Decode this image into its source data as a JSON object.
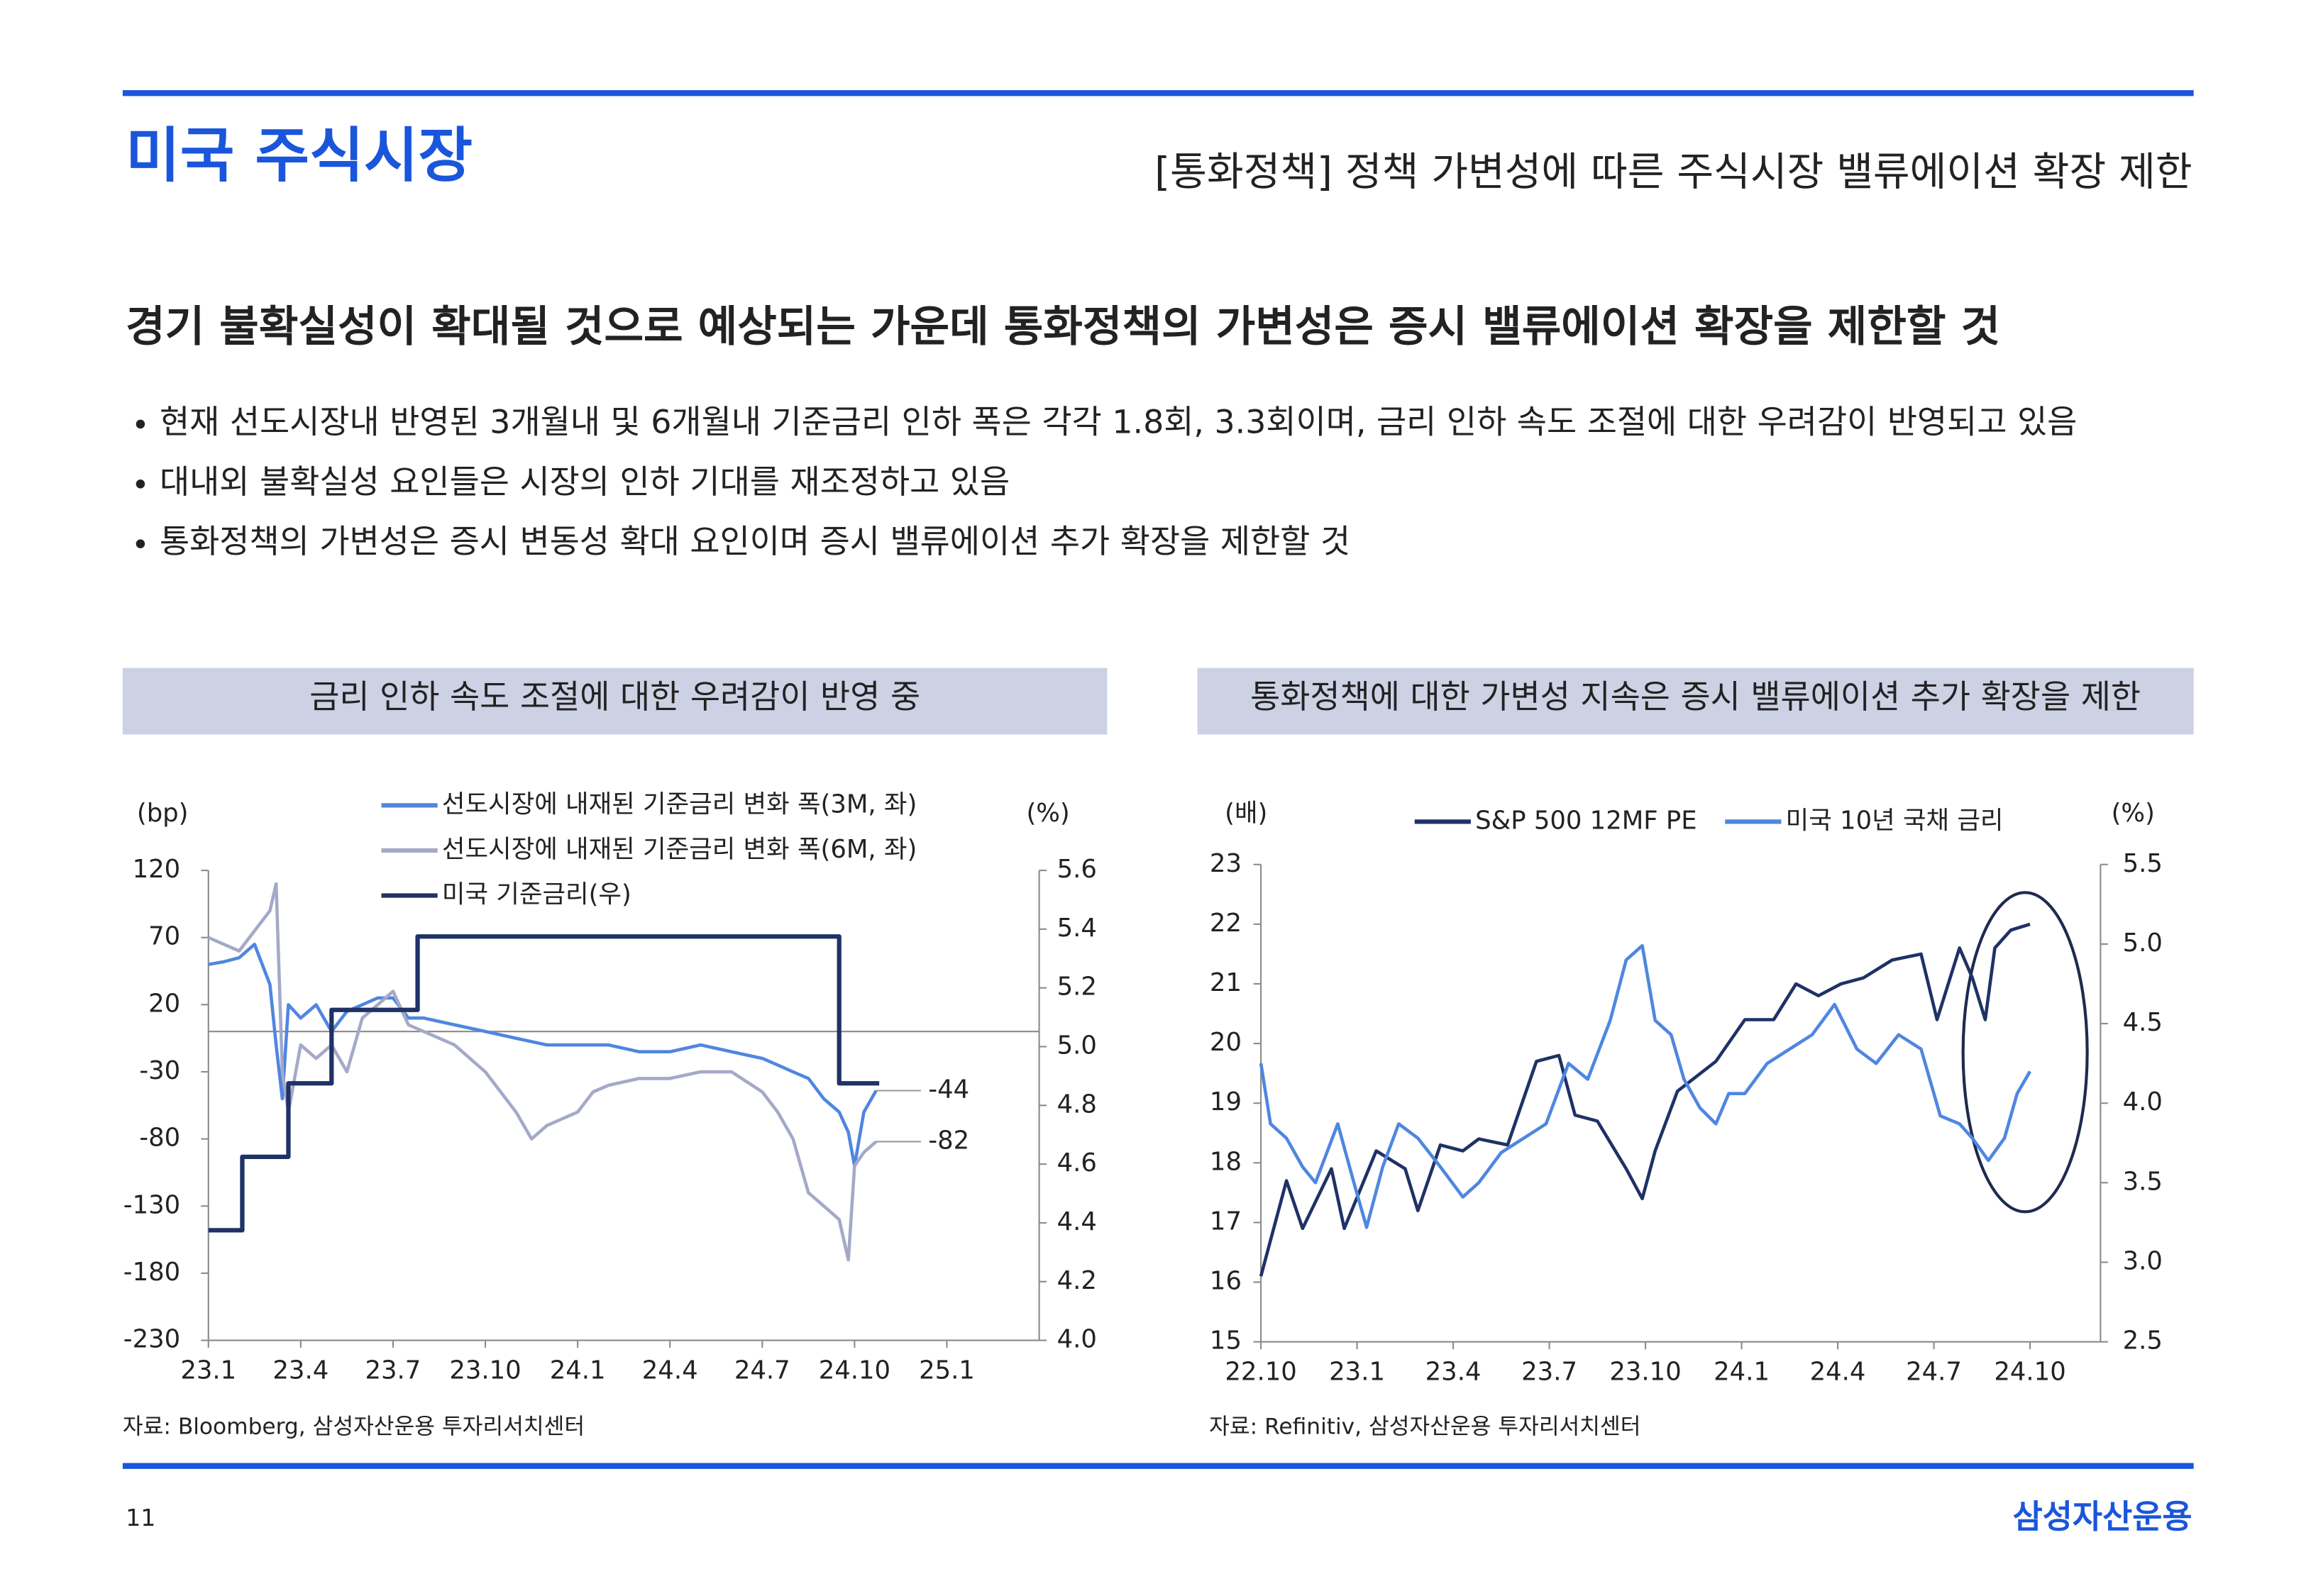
{
  "header": {
    "section": "미국 주식시장",
    "title": "[통화정책] 정책 가변성에 따른 주식시장 밸류에이션 확장 제한"
  },
  "headline": "경기 불확실성이 확대될 것으로 예상되는 가운데 통화정책의 가변성은 증시 밸류에이션 확장을 제한할 것",
  "bullets": [
    "현재 선도시장내 반영된 3개월내 및 6개월내 기준금리 인하 폭은 각각 1.8회, 3.3회이며, 금리 인하 속도 조절에 대한 우려감이 반영되고 있음",
    "대내외 불확실성 요인들은 시장의 인하 기대를 재조정하고 있음",
    "통화정책의 가변성은 증시 변동성 확대 요인이며 증시 밸류에이션 추가 확장을 제한할 것"
  ],
  "chart_data": [
    {
      "type": "line",
      "title": "금리 인하 속도 조절에 대한 우려감이 반영 중",
      "ylabel": "(bp)",
      "y2label": "(%)",
      "source": "자료: Bloomberg, 삼성자산운용 투자리서치센터",
      "legend": "top",
      "legend_direction": "vertical",
      "zero_line": true,
      "xlim": [
        0,
        27
      ],
      "xticks": [
        {
          "value": 0,
          "label": "23.1"
        },
        {
          "value": 3,
          "label": "23.4"
        },
        {
          "value": 6,
          "label": "23.7"
        },
        {
          "value": 9,
          "label": "23.10"
        },
        {
          "value": 12,
          "label": "24.1"
        },
        {
          "value": 15,
          "label": "24.4"
        },
        {
          "value": 18,
          "label": "24.7"
        },
        {
          "value": 21,
          "label": "24.10"
        },
        {
          "value": 24,
          "label": "25.1"
        }
      ],
      "ylim": [
        -230,
        120
      ],
      "yticks": [
        120,
        70,
        20,
        -30,
        -80,
        -130,
        -180,
        -230
      ],
      "y2lim": [
        4,
        5.6
      ],
      "y2ticks": [
        5.6,
        5.4,
        5.2,
        {
          "value": 5,
          "label": "5.0"
        },
        4.8,
        4.6,
        4.4,
        4.2,
        {
          "value": 4,
          "label": "4.0"
        }
      ],
      "series": [
        {
          "name": "선도시장에 내재된 기준금리 변화 폭(3M, 좌)",
          "color": "#4f86e0",
          "end_label": -44,
          "x": [
            0,
            0.5,
            1,
            1.5,
            2,
            2.2,
            2.4,
            2.6,
            3,
            3.5,
            4,
            4.5,
            5,
            5.5,
            6,
            6.5,
            7,
            8,
            9,
            10,
            11,
            12,
            13,
            14,
            15,
            16,
            17,
            18,
            18.5,
            19,
            19.5,
            20,
            20.5,
            20.8,
            21,
            21.3,
            21.7
          ],
          "values": [
            50,
            52,
            55,
            65,
            35,
            -10,
            -50,
            20,
            10,
            20,
            0,
            15,
            20,
            25,
            25,
            10,
            10,
            5,
            0,
            -5,
            -10,
            -10,
            -10,
            -15,
            -15,
            -10,
            -15,
            -20,
            -25,
            -30,
            -35,
            -50,
            -60,
            -75,
            -100,
            -60,
            -44
          ]
        },
        {
          "name": "선도시장에 내재된 기준금리 변화 폭(6M, 좌)",
          "color": "#a5a9c8",
          "end_label": -82,
          "x": [
            0,
            0.5,
            1,
            1.5,
            2,
            2.2,
            2.4,
            2.6,
            3,
            3.5,
            4,
            4.5,
            5,
            5.5,
            6,
            6.5,
            7,
            8,
            9,
            10,
            10.5,
            11,
            12,
            12.5,
            13,
            14,
            15,
            16,
            17,
            18,
            18.5,
            19,
            19.5,
            20,
            20.5,
            20.8,
            21,
            21.3,
            21.7
          ],
          "values": [
            70,
            65,
            60,
            75,
            90,
            110,
            -30,
            -60,
            -10,
            -20,
            -10,
            -30,
            10,
            20,
            30,
            5,
            0,
            -10,
            -30,
            -60,
            -80,
            -70,
            -60,
            -45,
            -40,
            -35,
            -35,
            -30,
            -30,
            -45,
            -60,
            -80,
            -120,
            -130,
            -140,
            -170,
            -100,
            -90,
            -82
          ]
        },
        {
          "name": "미국 기준금리(우)",
          "color": "#1f3266",
          "axis": "y2",
          "x": [
            0,
            1.1,
            1.1,
            2.6,
            2.6,
            4,
            4,
            6.8,
            6.8,
            20.5,
            20.5,
            21.8
          ],
          "values": [
            4.375,
            4.375,
            4.625,
            4.625,
            4.875,
            4.875,
            5.125,
            5.125,
            5.375,
            5.375,
            4.875,
            4.875
          ]
        }
      ]
    },
    {
      "type": "line",
      "title": "통화정책에 대한 가변성 지속은 증시 밸류에이션 추가 확장을 제한",
      "ylabel": "(배)",
      "y2label": "(%)",
      "source": "자료: Refinitiv, 삼성자산운용 투자리서치센터",
      "legend": "top",
      "legend_direction": "horizontal",
      "zero_line": false,
      "xlim": [
        0,
        26.2
      ],
      "xticks": [
        {
          "value": 0,
          "label": "22.10"
        },
        {
          "value": 3,
          "label": "23.1"
        },
        {
          "value": 6,
          "label": "23.4"
        },
        {
          "value": 9,
          "label": "23.7"
        },
        {
          "value": 12,
          "label": "23.10"
        },
        {
          "value": 15,
          "label": "24.1"
        },
        {
          "value": 18,
          "label": "24.4"
        },
        {
          "value": 21,
          "label": "24.7"
        },
        {
          "value": 24,
          "label": "24.10"
        }
      ],
      "ylim": [
        15,
        23
      ],
      "yticks": [
        23,
        22,
        21,
        20,
        19,
        18,
        17,
        16,
        15
      ],
      "y2lim": [
        2.5,
        5.5
      ],
      "y2ticks": [
        5.5,
        {
          "value": 5,
          "label": "5.0"
        },
        4.5,
        {
          "value": 4,
          "label": "4.0"
        },
        3.5,
        {
          "value": 3,
          "label": "3.0"
        },
        2.5
      ],
      "series": [
        {
          "name": "S&P 500 12MF PE",
          "color": "#1f3266",
          "x": [
            0,
            0.8,
            1.3,
            2.2,
            2.6,
            3.6,
            4.5,
            4.9,
            5.6,
            6.3,
            6.8,
            7.7,
            8.6,
            9.3,
            9.8,
            10.5,
            11.4,
            11.9,
            12.3,
            13,
            14.2,
            15.1,
            16,
            16.7,
            17.4,
            18.1,
            18.8,
            19.7,
            20.6,
            21.1,
            21.8,
            22.2,
            22.6,
            22.9,
            23.4,
            24
          ],
          "values": [
            16.1,
            17.7,
            16.9,
            17.9,
            16.9,
            18.2,
            17.9,
            17.2,
            18.3,
            18.2,
            18.4,
            18.3,
            19.7,
            19.8,
            18.8,
            18.7,
            17.9,
            17.4,
            18.2,
            19.2,
            19.7,
            20.4,
            20.4,
            21,
            20.8,
            21,
            21.1,
            21.4,
            21.5,
            20.4,
            21.6,
            21.1,
            20.4,
            21.6,
            21.9,
            22
          ]
        },
        {
          "name": "미국 10년 국채 금리",
          "color": "#4f86e0",
          "axis": "y2",
          "x": [
            0,
            0.3,
            0.8,
            1.3,
            1.7,
            2.4,
            2.9,
            3.3,
            3.8,
            4.3,
            4.9,
            5.6,
            6.3,
            6.8,
            7.5,
            8.2,
            8.9,
            9.6,
            10.2,
            10.9,
            11.4,
            11.9,
            12.3,
            12.8,
            13.2,
            13.7,
            14.2,
            14.6,
            15.1,
            15.8,
            16.5,
            17.2,
            17.9,
            18.6,
            19.2,
            19.9,
            20.6,
            21.2,
            21.8,
            22.2,
            22.7,
            23.2,
            23.6,
            24
          ],
          "values": [
            4.25,
            3.87,
            3.78,
            3.6,
            3.5,
            3.87,
            3.5,
            3.22,
            3.6,
            3.87,
            3.78,
            3.6,
            3.41,
            3.5,
            3.69,
            3.78,
            3.87,
            4.25,
            4.15,
            4.52,
            4.9,
            4.99,
            4.52,
            4.43,
            4.15,
            3.97,
            3.87,
            4.06,
            4.06,
            4.25,
            4.34,
            4.43,
            4.62,
            4.34,
            4.25,
            4.43,
            4.34,
            3.92,
            3.87,
            3.78,
            3.64,
            3.78,
            4.06,
            4.2
          ]
        }
      ]
    }
  ],
  "footer": {
    "page": "11",
    "brand": "삼성자산운용"
  }
}
